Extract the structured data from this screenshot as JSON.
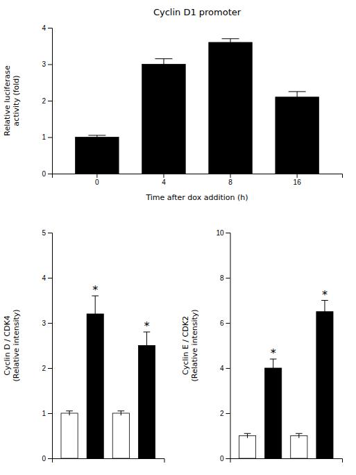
{
  "chart_data": [
    {
      "type": "bar",
      "title": "Cyclin D1 promoter",
      "xlabel": "Time after dox addition (h)",
      "ylabel": "Relative luciferase\nactivity (fold)",
      "categories": [
        "0",
        "4",
        "8",
        "16"
      ],
      "values": [
        1.0,
        3.0,
        3.6,
        2.1
      ],
      "errors": [
        0.05,
        0.15,
        0.1,
        0.15
      ],
      "color": "#000000",
      "ylim": [
        0,
        4
      ],
      "yticks": [
        0,
        1,
        2,
        3,
        4
      ]
    },
    {
      "type": "bar",
      "ylabel": "Cyclin D / CDK4\n(Relative intensity)",
      "categories": [
        null,
        null,
        null,
        null
      ],
      "values": [
        1.0,
        3.2,
        1.0,
        2.5
      ],
      "errors": [
        0.05,
        0.4,
        0.05,
        0.3
      ],
      "colors": [
        "#ffffff",
        "#000000",
        "#ffffff",
        "#000000"
      ],
      "ylim": [
        0,
        5
      ],
      "yticks": [
        0,
        1,
        2,
        3,
        4,
        5
      ],
      "annotations": [
        {
          "category": 1,
          "text": "*"
        },
        {
          "category": 3,
          "text": "*"
        }
      ]
    },
    {
      "type": "bar",
      "ylabel": "Cyclin E / CDK2\n(Relative intensity)",
      "categories": [
        null,
        null,
        null,
        null
      ],
      "values": [
        1.0,
        4.0,
        1.0,
        6.5
      ],
      "errors": [
        0.1,
        0.4,
        0.1,
        0.5
      ],
      "colors": [
        "#ffffff",
        "#000000",
        "#ffffff",
        "#000000"
      ],
      "ylim": [
        0,
        10
      ],
      "yticks": [
        0,
        2,
        4,
        6,
        8,
        10
      ],
      "annotations": [
        {
          "category": 1,
          "text": "*"
        },
        {
          "category": 3,
          "text": "*"
        }
      ]
    }
  ]
}
